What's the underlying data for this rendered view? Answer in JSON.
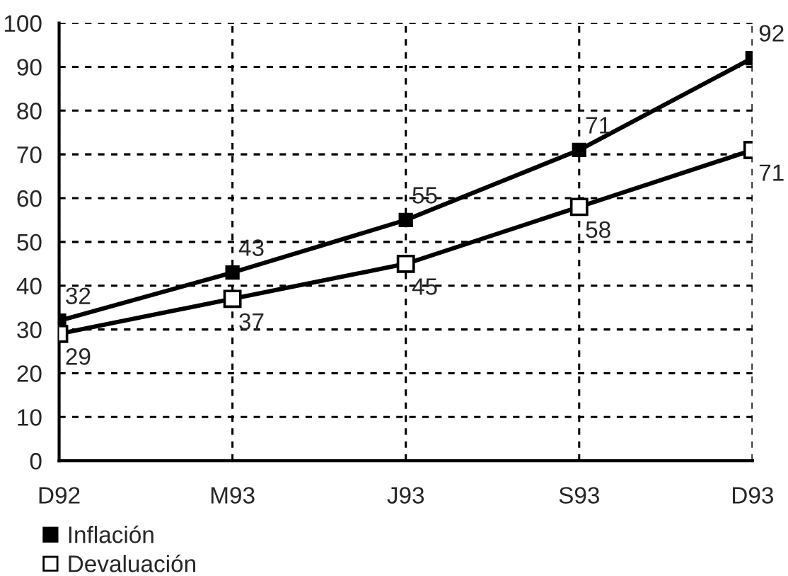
{
  "chart_data": {
    "type": "line",
    "categories": [
      "D92",
      "M93",
      "J93",
      "S93",
      "D93"
    ],
    "series": [
      {
        "name": "Inflación",
        "color": "#000000",
        "values": [
          32,
          43,
          55,
          71,
          92
        ]
      },
      {
        "name": "Devaluación",
        "color": "#000000",
        "values": [
          29,
          37,
          45,
          58,
          71
        ]
      }
    ],
    "ylim": [
      0,
      100
    ],
    "yticks": [
      0,
      10,
      20,
      30,
      40,
      50,
      60,
      70,
      80,
      90,
      100
    ],
    "grid": true,
    "legend": "bottom left",
    "marker": "square",
    "line_style": "solid",
    "data_labels": true
  }
}
